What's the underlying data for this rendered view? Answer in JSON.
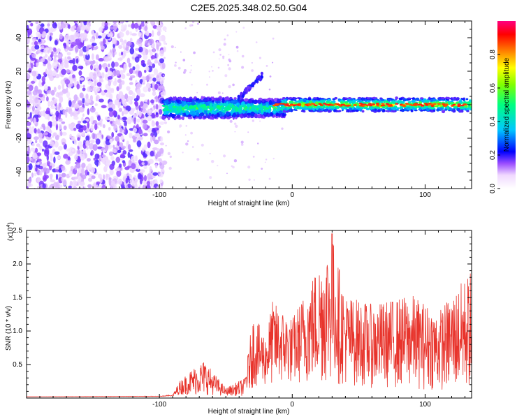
{
  "figure": {
    "title": "C2E5.2025.348.02.50.G04"
  },
  "chart_data": [
    {
      "type": "heatmap",
      "xlabel": "Height of straight line (km)",
      "ylabel": "Frequency (Hz)",
      "xlim": [
        -200,
        135
      ],
      "ylim": [
        -50,
        50
      ],
      "xticks": [
        -100,
        0,
        100
      ],
      "yticks": [
        -40,
        -20,
        0,
        20,
        40
      ],
      "colorbar": {
        "label": "Normalized spectral amplitude",
        "range": [
          0,
          1
        ],
        "ticks": [
          "0.0",
          "0.2",
          "0.4",
          "0.6",
          "0.8"
        ],
        "colormap": [
          "#ffffff",
          "#f0d8ff",
          "#7b2cff",
          "#0000ff",
          "#00c8ff",
          "#00ff80",
          "#80ff00",
          "#ffff00",
          "#ff8000",
          "#ff0000",
          "#ff0080"
        ]
      },
      "regions": [
        {
          "name": "noise",
          "x": [
            -200,
            -97
          ],
          "freq_range": [
            -50,
            50
          ],
          "amplitude": 0.1
        },
        {
          "name": "signal-band",
          "x": [
            -97,
            -5
          ],
          "freq_center": -2,
          "freq_width": 8,
          "amplitude": 0.4
        },
        {
          "name": "rising-arc",
          "x": [
            -45,
            -22
          ],
          "freq_start": 0,
          "freq_end": 18,
          "amplitude": 0.2
        },
        {
          "name": "strong-band",
          "x": [
            -5,
            135
          ],
          "freq_center": 0,
          "freq_width": 4,
          "amplitude": 0.8
        }
      ]
    },
    {
      "type": "line",
      "xlabel": "Height of straight line (km)",
      "ylabel": "SNR (10 * v/v)",
      "yscale_label": "(x10",
      "yscale_exp": "4",
      "xlim": [
        -200,
        135
      ],
      "ylim": [
        0,
        2.5
      ],
      "xticks": [
        -100,
        0,
        100
      ],
      "yticks": [
        "0.5",
        "1.0",
        "1.5",
        "2.0",
        "2.5"
      ],
      "line_color": "#e8342c",
      "envelope": [
        {
          "x": -200,
          "y": 0.02
        },
        {
          "x": -100,
          "y": 0.03
        },
        {
          "x": -90,
          "y": 0.05
        },
        {
          "x": -85,
          "y": 0.25
        },
        {
          "x": -75,
          "y": 0.45
        },
        {
          "x": -66,
          "y": 0.58
        },
        {
          "x": -60,
          "y": 0.4
        },
        {
          "x": -50,
          "y": 0.15
        },
        {
          "x": -36,
          "y": 0.3
        },
        {
          "x": -32,
          "y": 0.85
        },
        {
          "x": -30,
          "y": 1.25
        },
        {
          "x": -20,
          "y": 0.95
        },
        {
          "x": -15,
          "y": 1.45
        },
        {
          "x": 0,
          "y": 1.2
        },
        {
          "x": 30,
          "y": 2.45
        },
        {
          "x": 40,
          "y": 1.55
        },
        {
          "x": 60,
          "y": 1.4
        },
        {
          "x": 90,
          "y": 1.55
        },
        {
          "x": 110,
          "y": 1.3
        },
        {
          "x": 134,
          "y": 1.9
        }
      ],
      "noise_floor": [
        {
          "x": -200,
          "y": 0.02
        },
        {
          "x": -90,
          "y": 0.02
        },
        {
          "x": -85,
          "y": 0.05
        },
        {
          "x": -70,
          "y": 0.05
        },
        {
          "x": -36,
          "y": 0.03
        },
        {
          "x": -30,
          "y": 0.15
        },
        {
          "x": -5,
          "y": 0.2
        },
        {
          "x": 30,
          "y": 0.2
        },
        {
          "x": 60,
          "y": 0.15
        },
        {
          "x": 134,
          "y": 0.1
        }
      ]
    }
  ]
}
